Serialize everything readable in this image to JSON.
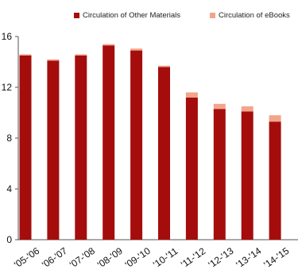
{
  "chart_data": {
    "type": "bar",
    "stacked": true,
    "title": "",
    "xlabel": "",
    "ylabel": "",
    "categories": [
      "'05-'06",
      "'06-'07",
      "'07-'08",
      "'08-'09",
      "'09-'10",
      "'10-'11",
      "'11-'12",
      "'12-'13",
      "'13-'14",
      "'14-'15"
    ],
    "series": [
      {
        "name": "Circulation of Other Materials",
        "color": "#a50d0d",
        "values": [
          14.5,
          14.1,
          14.5,
          15.3,
          14.9,
          13.6,
          11.2,
          10.3,
          10.1,
          9.3
        ]
      },
      {
        "name": "Circulation of eBooks",
        "color": "#f2a58a",
        "values": [
          0.1,
          0.1,
          0.1,
          0.1,
          0.15,
          0.1,
          0.4,
          0.4,
          0.4,
          0.5
        ]
      }
    ],
    "yticks": [
      "0",
      "4",
      "8",
      "12",
      "16"
    ],
    "ylim": [
      0,
      16
    ],
    "grid": false,
    "legend_position": "top"
  }
}
